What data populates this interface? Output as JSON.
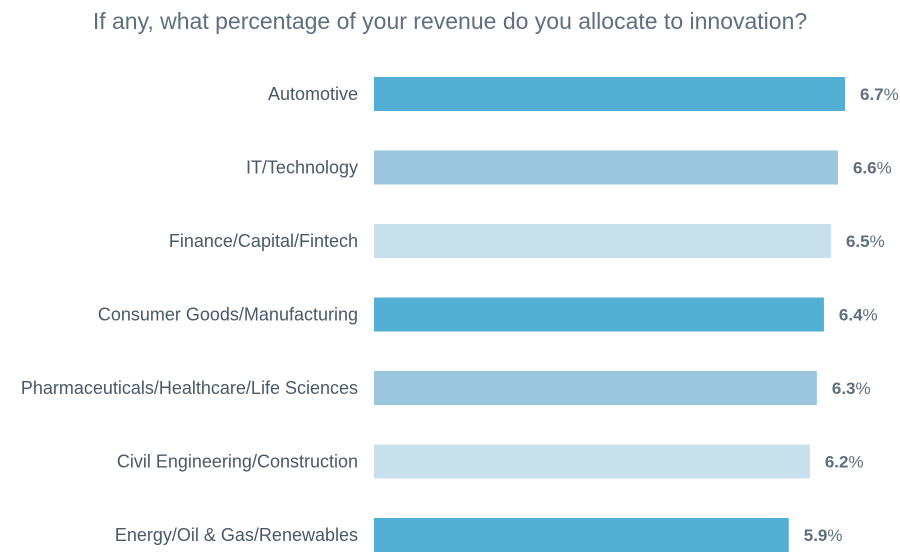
{
  "chart_data": {
    "type": "bar",
    "orientation": "horizontal",
    "title": "If any, what percentage of your revenue do you allocate to innovation?",
    "categories": [
      "Automotive",
      "IT/Technology",
      "Finance/Capital/Fintech",
      "Consumer Goods/Manufacturing",
      "Pharmaceuticals/Healthcare/Life Sciences",
      "Civil Engineering/Construction",
      "Energy/Oil & Gas/Renewables"
    ],
    "values": [
      6.7,
      6.6,
      6.5,
      6.4,
      6.3,
      6.2,
      5.9
    ],
    "value_labels": [
      "6.7",
      "6.6",
      "6.5",
      "6.4",
      "6.3",
      "6.2",
      "5.9"
    ],
    "unit": "%",
    "colors": [
      "#53aed4",
      "#9ac7de",
      "#c8e0ec",
      "#53aed4",
      "#9ac7de",
      "#c8e0ec",
      "#53aed4"
    ],
    "xlim": [
      0,
      6.7
    ],
    "grid": false,
    "legend": "none"
  }
}
